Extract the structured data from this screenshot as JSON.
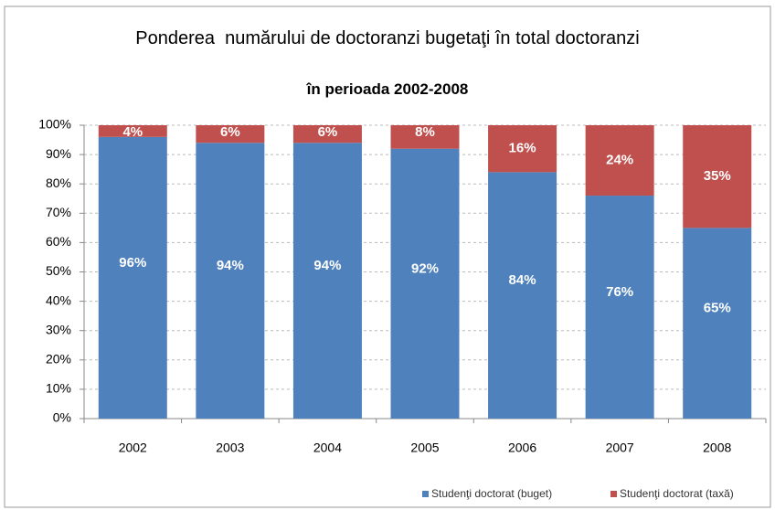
{
  "chart_data": {
    "type": "stacked_bar",
    "title": "Ponderea  numărului de doctoranzi bugetaţi în total doctoranzi",
    "subtitle": "în perioada 2002-2008",
    "categories": [
      "2002",
      "2003",
      "2004",
      "2005",
      "2006",
      "2007",
      "2008"
    ],
    "series": [
      {
        "name": "Studenţi doctorat (buget)",
        "color": "#4f81bd",
        "values": [
          96,
          94,
          94,
          92,
          84,
          76,
          65
        ],
        "value_labels": [
          "96%",
          "94%",
          "94%",
          "92%",
          "84%",
          "76%",
          "65%"
        ]
      },
      {
        "name": "Studenţi doctorat (taxă)",
        "color": "#c0504d",
        "values": [
          4,
          6,
          6,
          8,
          16,
          24,
          35
        ],
        "value_labels": [
          "4%",
          "6%",
          "6%",
          "8%",
          "16%",
          "24%",
          "35%"
        ]
      }
    ],
    "ylim": [
      0,
      100
    ],
    "yticks": [
      {
        "value": 0,
        "label": "0%"
      },
      {
        "value": 10,
        "label": "10%"
      },
      {
        "value": 20,
        "label": "20%"
      },
      {
        "value": 30,
        "label": "30%"
      },
      {
        "value": 40,
        "label": "40%"
      },
      {
        "value": 50,
        "label": "50%"
      },
      {
        "value": 60,
        "label": "60%"
      },
      {
        "value": 70,
        "label": "70%"
      },
      {
        "value": 80,
        "label": "80%"
      },
      {
        "value": 90,
        "label": "90%"
      },
      {
        "value": 100,
        "label": "100%"
      }
    ],
    "grid": true,
    "legend": "bottom-right"
  }
}
